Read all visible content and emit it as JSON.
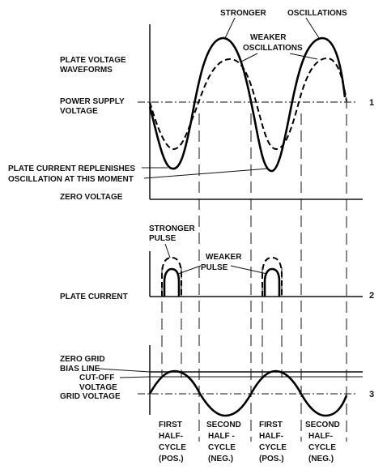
{
  "top_section": {
    "stronger_label": "STRONGER",
    "oscillations_label": "OSCILLATIONS",
    "weaker_label_1": "WEAKER",
    "weaker_label_2": "OSCILLATIONS",
    "plate_voltage_1": "PLATE VOLTAGE",
    "plate_voltage_2": "WAVEFORMS",
    "power_supply_1": "POWER SUPPLY",
    "power_supply_2": "VOLTAGE",
    "line_number": "1",
    "replenish_1": "PLATE CURRENT REPLENISHES",
    "replenish_2": "OSCILLATION AT THIS MOMENT",
    "zero_voltage": "ZERO VOLTAGE"
  },
  "middle_section": {
    "stronger_pulse_1": "STRONGER",
    "stronger_pulse_2": "PULSE",
    "weaker_pulse_1": "WEAKER",
    "weaker_pulse_2": "PULSE",
    "plate_current": "PLATE CURRENT",
    "line_number": "2"
  },
  "bottom_section": {
    "zero_grid_1": "ZERO GRID",
    "zero_grid_2": "BIAS LINE",
    "cutoff_1": "CUT-OFF",
    "cutoff_2": "VOLTAGE",
    "grid_voltage": "GRID VOLTAGE",
    "line_number": "3"
  },
  "half_cycles": [
    {
      "line1": "FIRST",
      "line2": "HALF-",
      "line3": "CYCLE",
      "line4": "(POS.)"
    },
    {
      "line1": "SECOND",
      "line2": "HALF -",
      "line3": "CYCLE",
      "line4": "(NEG.)"
    },
    {
      "line1": "FIRST",
      "line2": "HALF-",
      "line3": "CYCLE",
      "line4": "(POS.)"
    },
    {
      "line1": "SECOND",
      "line2": "HALF-",
      "line3": "CYCLE",
      "line4": "(NEG.)"
    }
  ]
}
